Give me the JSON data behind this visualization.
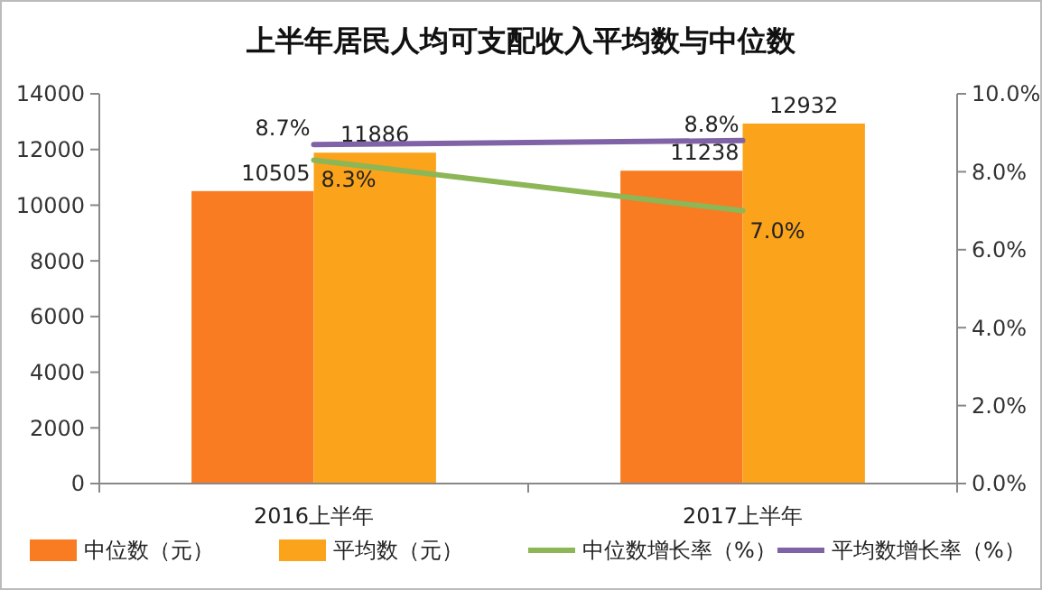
{
  "chart_data": {
    "type": "bar",
    "title": "上半年居民人均可支配收入平均数与中位数",
    "categories": [
      "2016上半年",
      "2017上半年"
    ],
    "series": [
      {
        "name": "中位数（元）",
        "color": "#f97b22",
        "values": [
          10505,
          11238
        ],
        "value_labels": [
          "10505",
          "11238"
        ]
      },
      {
        "name": "平均数（元）",
        "color": "#fba31a",
        "values": [
          11886,
          12932
        ],
        "value_labels": [
          "11886",
          "12932"
        ]
      },
      {
        "name": "中位数增长率（%）",
        "type": "line",
        "axis": "y2",
        "color": "#8db657",
        "values": [
          8.3,
          7.0
        ],
        "value_labels": [
          "8.3%",
          "7.0%"
        ]
      },
      {
        "name": "平均数增长率（%）",
        "type": "line",
        "axis": "y2",
        "color": "#7f63a6",
        "values": [
          8.7,
          8.8
        ],
        "value_labels": [
          "8.7%",
          "8.8%"
        ]
      }
    ],
    "ylim": [
      0,
      14000
    ],
    "yticks": [
      0,
      2000,
      4000,
      6000,
      8000,
      10000,
      12000,
      14000
    ],
    "y2lim": [
      0,
      10
    ],
    "y2ticks": [
      {
        "value": 0,
        "label": "0.0%"
      },
      {
        "value": 2,
        "label": "2.0%"
      },
      {
        "value": 4,
        "label": "4.0%"
      },
      {
        "value": 6,
        "label": "6.0%"
      },
      {
        "value": 8,
        "label": "8.0%"
      },
      {
        "value": 10,
        "label": "10.0%"
      }
    ],
    "grid": false,
    "legend": "bottom",
    "marker": "none"
  }
}
